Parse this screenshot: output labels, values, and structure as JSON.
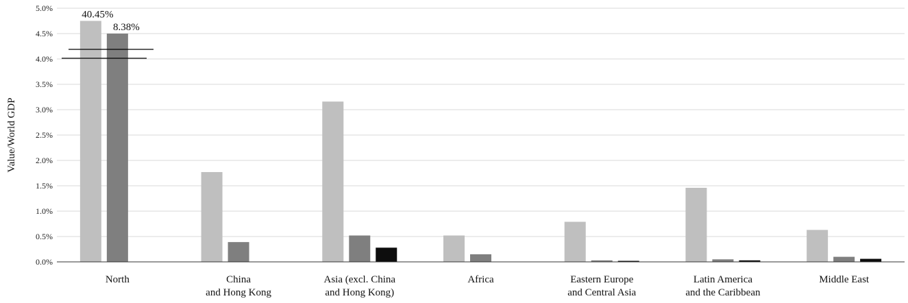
{
  "chart_data": {
    "type": "bar",
    "title": "",
    "xlabel": "",
    "ylabel": "Value/World GDP",
    "ylim": [
      0,
      5.0
    ],
    "y_ticks": [
      "0.0%",
      "0.5%",
      "1.0%",
      "1.5%",
      "2.0%",
      "2.5%",
      "3.0%",
      "3.5%",
      "4.0%",
      "4.5%",
      "5.0%"
    ],
    "y_tick_values": [
      0,
      0.5,
      1.0,
      1.5,
      2.0,
      2.5,
      3.0,
      3.5,
      4.0,
      4.5,
      5.0
    ],
    "grid": true,
    "axis_break": true,
    "categories": [
      [
        "North"
      ],
      [
        "China",
        "and Hong Kong"
      ],
      [
        "Asia (excl. China",
        "and Hong Kong)"
      ],
      [
        "Africa"
      ],
      [
        "Eastern Europe",
        "and Central Asia"
      ],
      [
        "Latin America",
        "and the Caribbean"
      ],
      [
        "Middle East"
      ]
    ],
    "series": [
      {
        "color": "#bfbfbf",
        "values": [
          40.45,
          1.77,
          3.16,
          0.52,
          0.79,
          1.46,
          0.63
        ]
      },
      {
        "color": "#7f7f7f",
        "values": [
          8.38,
          0.39,
          0.52,
          0.15,
          0.03,
          0.05,
          0.1
        ]
      },
      {
        "color": "#0d0d0d",
        "values": [
          null,
          null,
          0.28,
          null,
          0.02,
          0.03,
          0.06
        ]
      }
    ],
    "data_labels": [
      {
        "series": 0,
        "category": 0,
        "text": "40.45%"
      },
      {
        "series": 1,
        "category": 0,
        "text": "8.38%"
      }
    ]
  }
}
